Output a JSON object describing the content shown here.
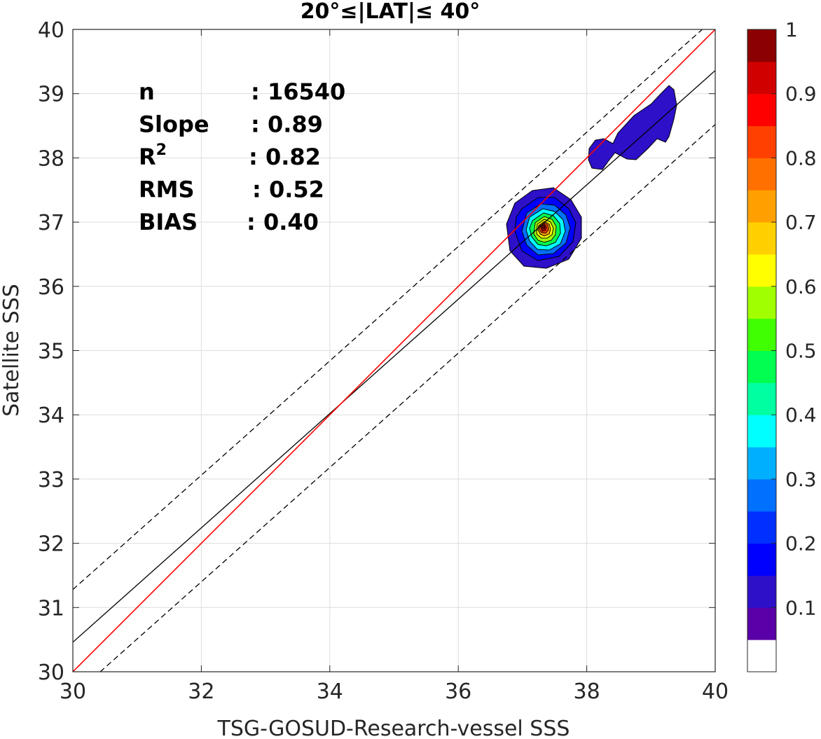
{
  "chart_data": {
    "type": "contour",
    "title": "20°≤|LAT|≤ 40°",
    "xlabel": "TSG-GOSUD-Research-vessel SSS",
    "ylabel": "Satellite SSS",
    "xlim": [
      30,
      40
    ],
    "ylim": [
      30,
      40
    ],
    "xticks": [
      "30",
      "32",
      "34",
      "36",
      "38",
      "40"
    ],
    "yticks": [
      "30",
      "31",
      "32",
      "33",
      "34",
      "35",
      "36",
      "37",
      "38",
      "39",
      "40"
    ],
    "grid": true,
    "stats": [
      {
        "label": "n",
        "value": ": 16540"
      },
      {
        "label": "Slope",
        "value": ": 0.89"
      },
      {
        "label": "R",
        "sup": "2",
        "value": ": 0.82"
      },
      {
        "label": "RMS",
        "value": ": 0.52"
      },
      {
        "label": "BIAS",
        "value": ": 0.40"
      }
    ],
    "lines": {
      "identity": {
        "slope": 1.0,
        "intercept": 0.0,
        "color": "#ff0000",
        "style": "solid"
      },
      "fit": {
        "slope": 0.89,
        "intercept": 3.76,
        "color": "#000000",
        "style": "solid"
      },
      "upper_bound": {
        "slope": 0.89,
        "intercept": 4.58,
        "color": "#000000",
        "style": "dashed"
      },
      "lower_bound": {
        "slope": 0.89,
        "intercept": 2.92,
        "color": "#000000",
        "style": "dashed"
      }
    },
    "density_peak": {
      "x": 37.28,
      "y": 36.93
    },
    "colorbar": {
      "ticks": [
        "0.1",
        "0.2",
        "0.3",
        "0.4",
        "0.5",
        "0.6",
        "0.7",
        "0.8",
        "0.9",
        "1"
      ],
      "range": [
        0,
        1
      ],
      "colors": [
        "#ffffff",
        "#5a00a8",
        "#2d10c8",
        "#0000ff",
        "#0030ff",
        "#0070ff",
        "#00b0ff",
        "#00ffff",
        "#00ffa0",
        "#00ff50",
        "#40ff00",
        "#a0ff00",
        "#ffff00",
        "#ffd000",
        "#ffa000",
        "#ff7000",
        "#ff4000",
        "#ff0000",
        "#d00000",
        "#8b0000"
      ]
    }
  }
}
